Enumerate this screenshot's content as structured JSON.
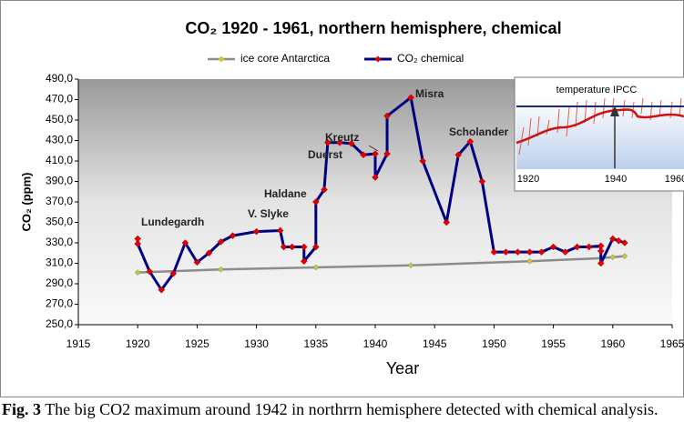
{
  "chart_data": {
    "type": "line",
    "title": "CO₂ 1920 - 1961, northern hemisphere, chemical",
    "x_label": "Year",
    "y_label": "CO₂ (ppm)",
    "xlim": [
      1915,
      1965
    ],
    "xticks": [
      1915,
      1920,
      1925,
      1930,
      1935,
      1940,
      1945,
      1950,
      1955,
      1960,
      1965
    ],
    "ylim": [
      250,
      490
    ],
    "yticks": [
      {
        "value": 250,
        "label": "250,0"
      },
      {
        "value": 270,
        "label": "270,0"
      },
      {
        "value": 290,
        "label": "290,0"
      },
      {
        "value": 310,
        "label": "310,0"
      },
      {
        "value": 330,
        "label": "330,0"
      },
      {
        "value": 350,
        "label": "350,0"
      },
      {
        "value": 370,
        "label": "370,0"
      },
      {
        "value": 390,
        "label": "390,0"
      },
      {
        "value": 410,
        "label": "410,0"
      },
      {
        "value": 430,
        "label": "430,0"
      },
      {
        "value": 450,
        "label": "450,0"
      },
      {
        "value": 470,
        "label": "470,0"
      },
      {
        "value": 490,
        "label": "490,0"
      }
    ],
    "grid": false,
    "legend": "top",
    "series": [
      {
        "name": "ice core Antarctica",
        "color": "#8c8c8c",
        "marker_color": "#c8c832",
        "x": [
          1920,
          1927,
          1935,
          1943,
          1953,
          1959,
          1960,
          1961
        ],
        "values": [
          301,
          304,
          306,
          308,
          312,
          315,
          316,
          317
        ]
      },
      {
        "name": "CO₂ chemical",
        "color": "#000080",
        "marker_color": "#e00000",
        "x": [
          1920,
          1920,
          1921,
          1922,
          1923,
          1924,
          1925,
          1926,
          1927,
          1928,
          1930,
          1932,
          1932.3,
          1933,
          1934,
          1934,
          1935,
          1935,
          1935.7,
          1936,
          1937,
          1938,
          1939,
          1940,
          1940,
          1941,
          1941,
          1943,
          1944,
          1946,
          1947,
          1948,
          1949,
          1950,
          1951,
          1952,
          1953,
          1954,
          1955,
          1956,
          1957,
          1958,
          1959,
          1959,
          1959,
          1960,
          1960.5,
          1961
        ],
        "values": [
          334,
          329,
          302,
          284,
          300,
          330,
          311,
          320,
          331,
          337,
          341,
          342,
          326,
          326,
          326,
          312,
          326,
          370,
          382,
          428,
          428,
          427,
          416,
          417,
          394,
          417,
          454,
          472,
          410,
          350,
          416,
          429,
          390,
          321,
          321,
          321,
          321,
          321,
          326,
          321,
          326,
          326,
          327,
          322,
          310,
          334,
          332,
          330
        ]
      }
    ],
    "annotations": [
      "Lundegardh",
      "V. Slyke",
      "Haldane",
      "Duerst",
      "Kreutz",
      "Misra",
      "Scholander"
    ],
    "inset": {
      "title": "temperature IPCC",
      "xticks": [
        1920,
        1940,
        1960
      ]
    }
  },
  "caption": {
    "label": "Fig. 3",
    "text": "The big CO2 maximum around 1942 in northrrn hemisphere detected with chemical analysis."
  }
}
